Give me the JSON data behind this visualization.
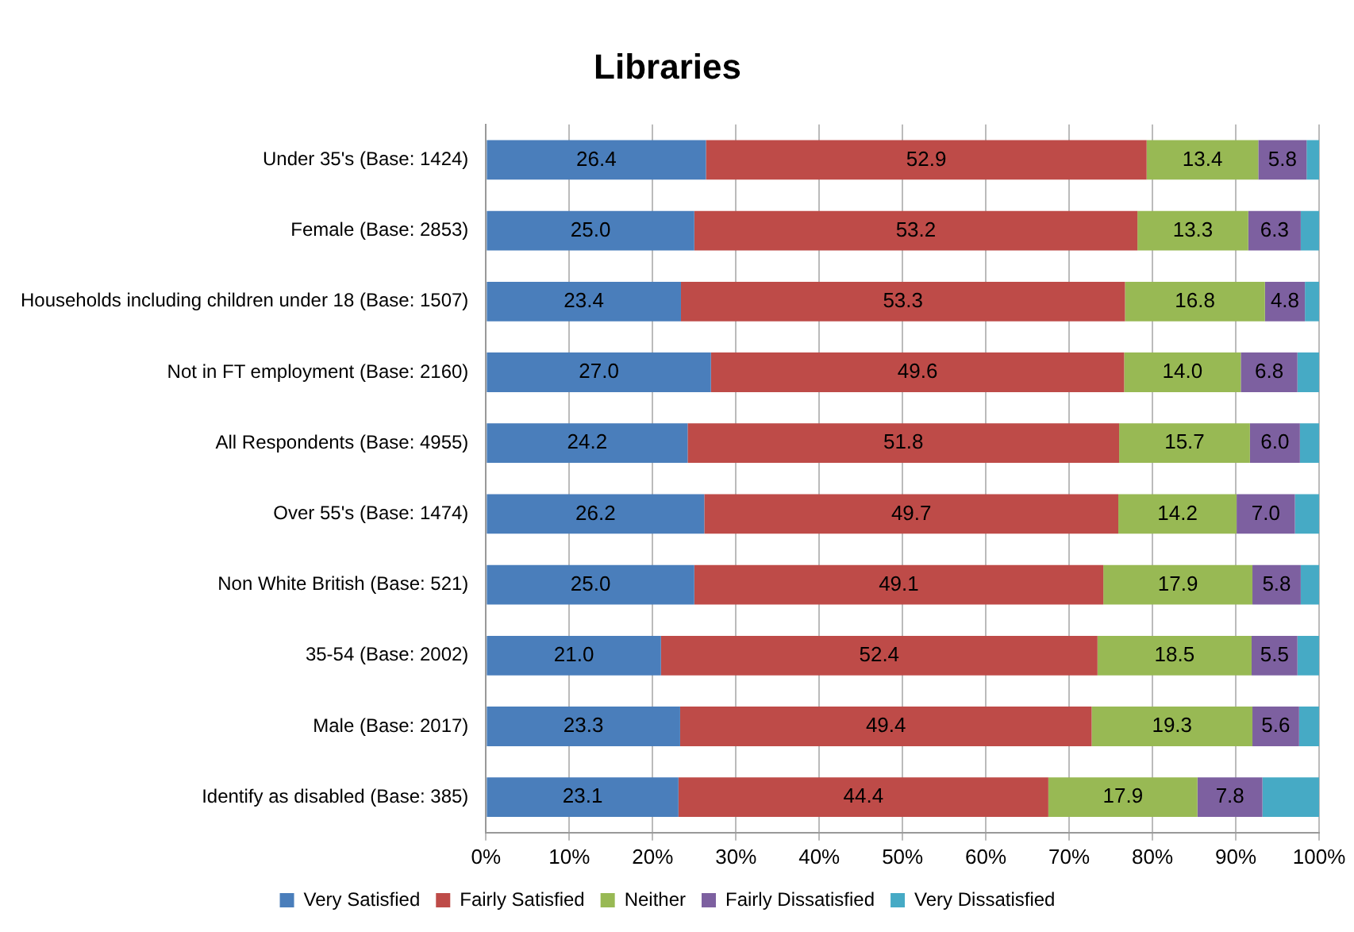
{
  "chart_data": {
    "type": "bar",
    "orientation": "horizontal",
    "stacked": true,
    "title": "Libraries",
    "categories": [
      "Under 35's (Base: 1424)",
      "Female (Base: 2853)",
      "Households including children under 18 (Base: 1507)",
      "Not in FT employment (Base: 2160)",
      "All Respondents (Base: 4955)",
      "Over 55's (Base: 1474)",
      "Non White British (Base: 521)",
      "35-54 (Base: 2002)",
      "Male (Base: 2017)",
      "Identify as disabled (Base: 385)"
    ],
    "series": [
      {
        "name": "Very Satisfied",
        "color": "#4a7ebb",
        "values": [
          26.4,
          25.0,
          23.4,
          27.0,
          24.2,
          26.2,
          25.0,
          21.0,
          23.3,
          23.1
        ],
        "value_labels": [
          "26.4",
          "25.0",
          "23.4",
          "27.0",
          "24.2",
          "26.2",
          "25.0",
          "21.0",
          "23.3",
          "23.1"
        ]
      },
      {
        "name": "Fairly Satisfied",
        "color": "#be4b48",
        "values": [
          52.9,
          53.2,
          53.3,
          49.6,
          51.8,
          49.7,
          49.1,
          52.4,
          49.4,
          44.4
        ],
        "value_labels": [
          "52.9",
          "53.2",
          "53.3",
          "49.6",
          "51.8",
          "49.7",
          "49.1",
          "52.4",
          "49.4",
          "44.4"
        ]
      },
      {
        "name": "Neither",
        "color": "#98b954",
        "values": [
          13.4,
          13.3,
          16.8,
          14.0,
          15.7,
          14.2,
          17.9,
          18.5,
          19.3,
          17.9
        ],
        "value_labels": [
          "13.4",
          "13.3",
          "16.8",
          "14.0",
          "15.7",
          "14.2",
          "17.9",
          "18.5",
          "19.3",
          "17.9"
        ]
      },
      {
        "name": "Fairly Dissatisfied",
        "color": "#7d60a0",
        "values": [
          5.8,
          6.3,
          4.8,
          6.8,
          6.0,
          7.0,
          5.8,
          5.5,
          5.6,
          7.8
        ],
        "value_labels": [
          "5.8",
          "6.3",
          "4.8",
          "6.8",
          "6.0",
          "7.0",
          "5.8",
          "5.5",
          "5.6",
          "7.8"
        ]
      },
      {
        "name": "Very Dissatisfied",
        "color": "#46aac5",
        "values": [
          1.5,
          2.2,
          1.7,
          2.6,
          2.3,
          2.9,
          2.2,
          2.6,
          2.4,
          6.8
        ],
        "value_labels": [
          null,
          null,
          null,
          null,
          null,
          null,
          null,
          null,
          null,
          null
        ]
      }
    ],
    "xlim": [
      0,
      100
    ],
    "xticks": [
      {
        "value": 0,
        "label": "0%"
      },
      {
        "value": 10,
        "label": "10%"
      },
      {
        "value": 20,
        "label": "20%"
      },
      {
        "value": 30,
        "label": "30%"
      },
      {
        "value": 40,
        "label": "40%"
      },
      {
        "value": 50,
        "label": "50%"
      },
      {
        "value": 60,
        "label": "60%"
      },
      {
        "value": 70,
        "label": "70%"
      },
      {
        "value": 80,
        "label": "80%"
      },
      {
        "value": 90,
        "label": "90%"
      },
      {
        "value": 100,
        "label": "100%"
      }
    ],
    "grid": "x",
    "legend": "bottom"
  }
}
